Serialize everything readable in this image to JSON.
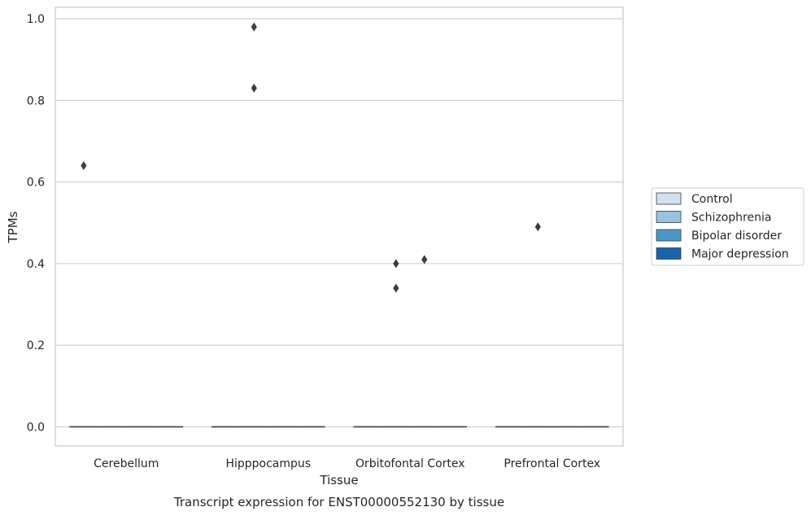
{
  "chart_data": {
    "type": "box",
    "title": "",
    "caption": "Transcript expression for ENST00000552130 by tissue",
    "xlabel": "Tissue",
    "ylabel": "TPMs",
    "ylim": [
      -0.047,
      1.028
    ],
    "yticks": [
      0.0,
      0.2,
      0.4,
      0.6,
      0.8,
      1.0
    ],
    "ytick_labels": [
      "0.0",
      "0.2",
      "0.4",
      "0.6",
      "0.8",
      "1.0"
    ],
    "grid": "horizontal",
    "legend_position": "right",
    "categories": [
      "Cerebellum",
      "Hipppocampus",
      "Orbitofontal Cortex",
      "Prefrontal Cortex"
    ],
    "series": [
      {
        "name": "Control",
        "color": "#d0e1f2",
        "medians": [
          0,
          0,
          0,
          0
        ],
        "outliers": [
          [
            0.64
          ],
          [],
          [],
          []
        ]
      },
      {
        "name": "Schizophrenia",
        "color": "#94c4df",
        "medians": [
          0,
          0,
          0,
          0
        ],
        "outliers": [
          [],
          [
            0.98,
            0.83
          ],
          [
            0.4,
            0.34
          ],
          [
            0.49
          ]
        ]
      },
      {
        "name": "Bipolar disorder",
        "color": "#4a98c9",
        "medians": [
          0,
          0,
          0,
          0
        ],
        "outliers": [
          [],
          [],
          [
            0.41
          ],
          []
        ]
      },
      {
        "name": "Major depression",
        "color": "#1764ab",
        "medians": [
          0,
          0,
          0,
          0
        ],
        "outliers": [
          [],
          [],
          [],
          []
        ]
      }
    ]
  }
}
